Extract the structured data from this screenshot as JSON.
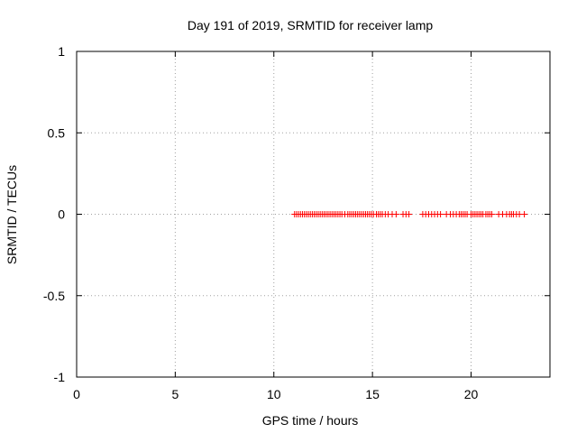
{
  "chart_data": {
    "type": "scatter",
    "title": "Day 191 of 2019, SRMTID for receiver lamp",
    "xlabel": "GPS time / hours",
    "ylabel": "SRMTID / TECUs",
    "xlim": [
      0,
      24
    ],
    "ylim": [
      -1,
      1
    ],
    "x_ticks": [
      0,
      5,
      10,
      15,
      20
    ],
    "y_ticks": [
      -1,
      -0.5,
      0,
      0.5,
      1
    ],
    "x_tick_labels": [
      "0",
      "5",
      "10",
      "15",
      "20"
    ],
    "y_tick_labels": [
      "-1",
      "-0.5",
      "0",
      "0.5",
      "1"
    ],
    "grid": true,
    "marker": "+",
    "series": [
      {
        "name": "SRMTID",
        "color": "#ff0000",
        "x": [
          11.05,
          11.15,
          11.25,
          11.35,
          11.45,
          11.55,
          11.65,
          11.75,
          11.85,
          11.95,
          12.05,
          12.15,
          12.25,
          12.35,
          12.45,
          12.55,
          12.65,
          12.75,
          12.85,
          12.95,
          13.05,
          13.15,
          13.25,
          13.35,
          13.45,
          13.6,
          13.75,
          13.85,
          13.95,
          14.05,
          14.15,
          14.25,
          14.35,
          14.45,
          14.55,
          14.65,
          14.75,
          14.85,
          14.95,
          15.05,
          15.2,
          15.3,
          15.4,
          15.5,
          15.65,
          15.8,
          16.0,
          16.2,
          16.55,
          16.7,
          16.85,
          17.55,
          17.7,
          17.85,
          18.0,
          18.15,
          18.3,
          18.45,
          18.75,
          18.95,
          19.1,
          19.25,
          19.4,
          19.5,
          19.6,
          19.7,
          19.8,
          20.0,
          20.1,
          20.2,
          20.3,
          20.4,
          20.5,
          20.6,
          20.75,
          20.85,
          20.95,
          21.05,
          21.4,
          21.6,
          21.8,
          21.95,
          22.05,
          22.15,
          22.3,
          22.45,
          22.7
        ],
        "y": [
          0,
          0,
          0,
          0,
          0,
          0,
          0,
          0,
          0,
          0,
          0,
          0,
          0,
          0,
          0,
          0,
          0,
          0,
          0,
          0,
          0,
          0,
          0,
          0,
          0,
          0,
          0,
          0,
          0,
          0,
          0,
          0,
          0,
          0,
          0,
          0,
          0,
          0,
          0,
          0,
          0,
          0,
          0,
          0,
          0,
          0,
          0,
          0,
          0,
          0,
          0,
          0,
          0,
          0,
          0,
          0,
          0,
          0,
          0,
          0,
          0,
          0,
          0,
          0,
          0,
          0,
          0,
          0,
          0,
          0,
          0,
          0,
          0,
          0,
          0,
          0,
          0,
          0,
          0,
          0,
          0,
          0,
          0,
          0,
          0,
          0,
          0
        ]
      }
    ]
  }
}
